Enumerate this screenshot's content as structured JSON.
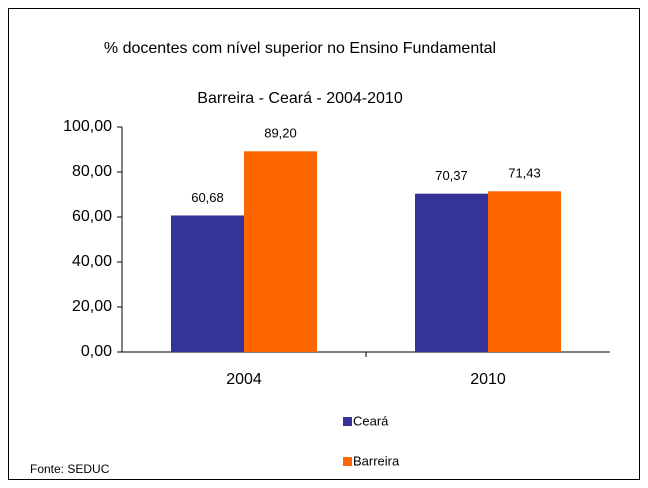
{
  "chart_data": {
    "type": "bar",
    "title": "% docentes com nível  superior no Ensino Fundamental",
    "subtitle": "Barreira  -  Ceará - 2004-2010",
    "categories": [
      "2004",
      "2010"
    ],
    "series": [
      {
        "name": "Ceará",
        "color": "#333399",
        "values": [
          60.68,
          70.37
        ],
        "value_labels": [
          "60,68",
          "70,37"
        ]
      },
      {
        "name": "Barreira",
        "color": "#ff6600",
        "values": [
          89.2,
          71.43
        ],
        "value_labels": [
          "89,20",
          "71,43"
        ]
      }
    ],
    "ylim": [
      0,
      100
    ],
    "yticks": [
      {
        "value": 0,
        "label": "0,00"
      },
      {
        "value": 20,
        "label": "20,00"
      },
      {
        "value": 40,
        "label": "40,00"
      },
      {
        "value": 60,
        "label": "60,00"
      },
      {
        "value": 80,
        "label": "80,00"
      },
      {
        "value": 100,
        "label": "100,00"
      }
    ],
    "grid": false,
    "legend": "bottom",
    "source": "Fonte: SEDUC"
  }
}
